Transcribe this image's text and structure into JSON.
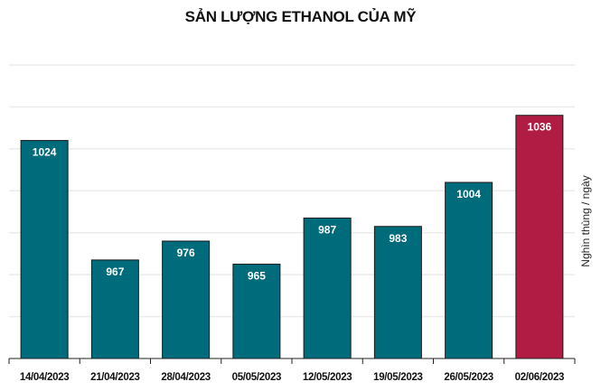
{
  "chart_data": {
    "type": "bar",
    "title": "SẢN LƯỢNG ETHANOL CỦA MỸ",
    "xlabel": "",
    "ylabel": "Nghìn thùng / ngày",
    "categories": [
      "14/04/2023",
      "21/04/2023",
      "28/04/2023",
      "05/05/2023",
      "12/05/2023",
      "19/05/2023",
      "26/05/2023",
      "02/06/2023"
    ],
    "values": [
      1024,
      967,
      976,
      965,
      987,
      983,
      1004,
      1036
    ],
    "ylim": [
      920,
      1060
    ],
    "grid": true,
    "gridstep": 20,
    "colors": {
      "default": "#006b7a",
      "highlight": "#b01c43"
    },
    "highlight_index": 7
  }
}
